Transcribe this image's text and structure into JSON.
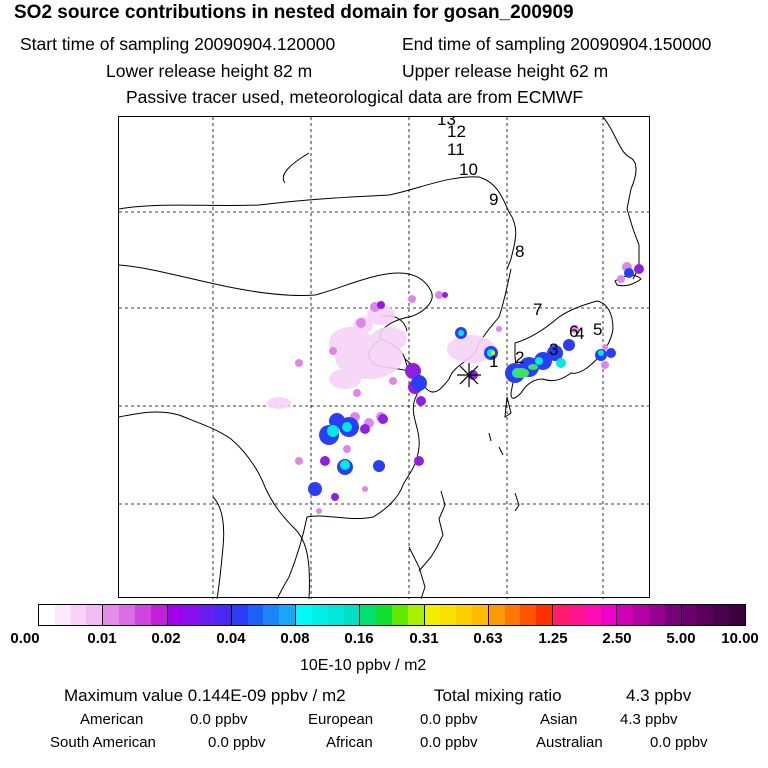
{
  "header": {
    "title": "SO2 source contributions in nested domain for gosan_200909",
    "start_label": "Start time of sampling 20090904.120000",
    "end_label": "End time of sampling 20090904.150000",
    "lower_label": "Lower release height   82 m",
    "upper_label": "Upper release height   62 m",
    "tracer_note": "Passive tracer used, meteorological data are from ECMWF"
  },
  "map": {
    "trajectory_labels": [
      "1",
      "2",
      "3",
      "4",
      "5",
      "6",
      "7",
      "8",
      "9",
      "10",
      "11",
      "12",
      "13"
    ],
    "receptor_marker": "asterisk"
  },
  "colorbar": {
    "ticks": [
      "0.00",
      "0.01",
      "0.02",
      "0.04",
      "0.08",
      "0.16",
      "0.31",
      "0.63",
      "1.25",
      "2.50",
      "5.00",
      "10.00"
    ],
    "unit": "10E-10 ppbv / m2",
    "colors": [
      [
        "#ffffff",
        "#fce8fc",
        "#f8d2f8",
        "#f2bcf2"
      ],
      [
        "#e38de8",
        "#da6ee4",
        "#ce46df",
        "#c020da"
      ],
      [
        "#9f00ee",
        "#8a10f0",
        "#6a1df2",
        "#4a28f4"
      ],
      [
        "#2e3ef6",
        "#1f60f8",
        "#1c84f8",
        "#1aa6f8"
      ],
      [
        "#00fafa",
        "#00f0e8",
        "#00e8d8",
        "#00e0c4"
      ],
      [
        "#00e070",
        "#10e030",
        "#60e800",
        "#a8f000"
      ],
      [
        "#f0f000",
        "#f8e000",
        "#fcd000",
        "#ffbc00"
      ],
      [
        "#ff9a00",
        "#ff7800",
        "#ff5400",
        "#ff3000"
      ],
      [
        "#ff1c6a",
        "#ff1490",
        "#ff0cb4",
        "#f000c8"
      ],
      [
        "#d000b8",
        "#b400a4",
        "#980090",
        "#780078"
      ],
      [
        "#6a006a",
        "#5a005c",
        "#4a004e",
        "#3a0040"
      ]
    ]
  },
  "stats": {
    "max_label": "Maximum value  0.144E-09 ppbv / m2",
    "total_label": "Total mixing ratio",
    "total_value": "4.3 ppbv",
    "american_label": "American",
    "american_value": "0.0 ppbv",
    "european_label": "European",
    "european_value": "0.0 ppbv",
    "asian_label": "Asian",
    "asian_value": "4.3 ppbv",
    "south_american_label": "South American",
    "south_american_value": "0.0 ppbv",
    "african_label": "African",
    "african_value": "0.0 ppbv",
    "australian_label": "Australian",
    "australian_value": "0.0 ppbv"
  }
}
